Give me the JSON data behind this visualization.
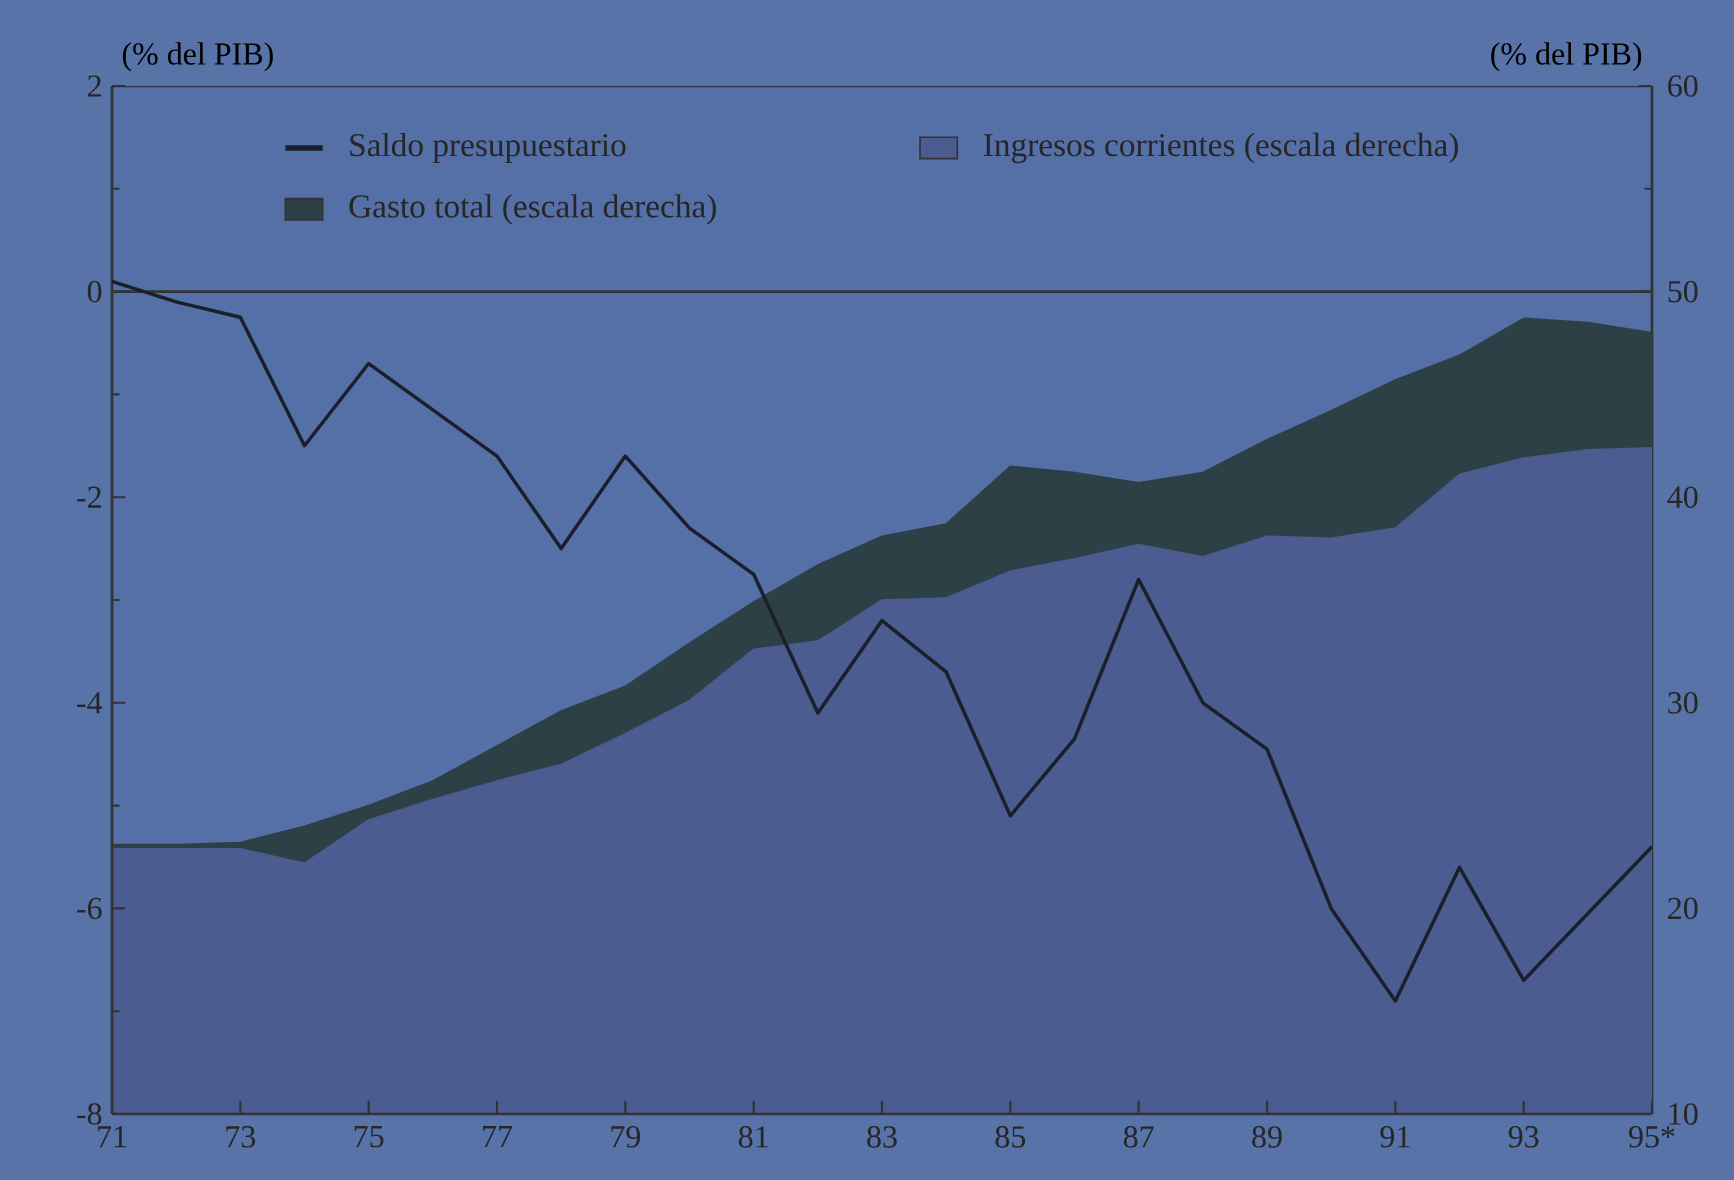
{
  "chart_data": {
    "type": "line",
    "ylabel": "(% del PIB)",
    "y2label": "(% del PIB)",
    "x": [
      71,
      72,
      73,
      74,
      75,
      76,
      77,
      78,
      79,
      80,
      81,
      82,
      83,
      84,
      85,
      86,
      87,
      88,
      89,
      90,
      91,
      92,
      93,
      94,
      95
    ],
    "xlim": [
      71,
      95
    ],
    "xticks": [
      71,
      73,
      75,
      77,
      79,
      81,
      83,
      85,
      87,
      89,
      91,
      93,
      {
        "value": 95,
        "label": "95*"
      }
    ],
    "ylim": [
      -8,
      2
    ],
    "yticks": [
      -8,
      -6,
      -4,
      -2,
      0,
      2
    ],
    "y2lim": [
      10,
      60
    ],
    "y2ticks": [
      10,
      20,
      30,
      40,
      50,
      60
    ],
    "legend": "top",
    "ref_lines": [
      {
        "axis": "y",
        "value": 0
      }
    ],
    "series": [
      {
        "name": "Saldo presupuestario",
        "color": "#1a1f2a",
        "values": [
          0.1,
          -0.1,
          -0.25,
          -1.5,
          -0.7,
          -1.15,
          -1.6,
          -2.5,
          -1.6,
          -2.3,
          -2.75,
          -4.1,
          -3.2,
          -3.7,
          -5.1,
          -4.35,
          -2.8,
          -4.0,
          -4.45,
          -6.0,
          -6.9,
          -5.6,
          -6.7,
          -6.05,
          -5.4
        ]
      },
      {
        "name": "Ingresos corrientes (escala derecha)",
        "type": "area",
        "axis": "y2",
        "color": "#4a5c90",
        "values": [
          22.9,
          22.9,
          22.9,
          22.2,
          24.3,
          25.3,
          26.2,
          27.0,
          28.5,
          30.1,
          32.6,
          33.0,
          35.0,
          35.1,
          36.4,
          37.0,
          37.7,
          37.1,
          38.1,
          38.0,
          38.5,
          41.1,
          41.9,
          42.3,
          42.4
        ]
      },
      {
        "name": "Gasto total (escala derecha)",
        "type": "area",
        "axis": "y2",
        "color": "#2d4046",
        "values": [
          23.1,
          23.1,
          23.2,
          24.0,
          25.0,
          26.2,
          27.9,
          29.6,
          30.8,
          32.9,
          34.9,
          36.7,
          38.1,
          38.7,
          41.5,
          41.2,
          40.7,
          41.2,
          42.8,
          44.2,
          45.7,
          46.9,
          48.7,
          48.5,
          48.0
        ]
      }
    ]
  }
}
